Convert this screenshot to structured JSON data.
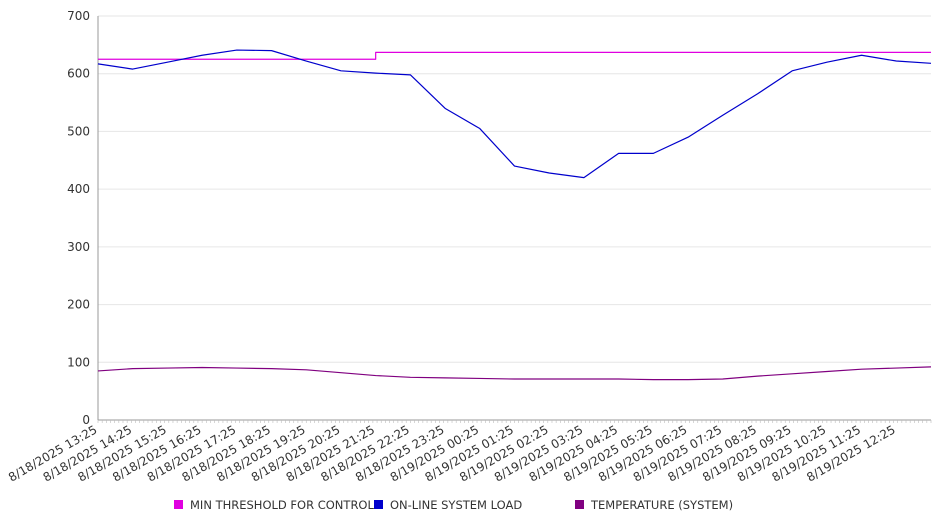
{
  "chart_data": {
    "type": "line",
    "title": "",
    "xlabel": "",
    "ylabel": "",
    "ylim": [
      0,
      700
    ],
    "yticks": [
      0,
      100,
      200,
      300,
      400,
      500,
      600,
      700
    ],
    "grid": true,
    "legend_position": "bottom",
    "x": [
      "8/18/2025 13:25",
      "8/18/2025 14:25",
      "8/18/2025 15:25",
      "8/18/2025 16:25",
      "8/18/2025 17:25",
      "8/18/2025 18:25",
      "8/18/2025 19:25",
      "8/18/2025 20:25",
      "8/18/2025 21:25",
      "8/18/2025 22:25",
      "8/18/2025 23:25",
      "8/19/2025 00:25",
      "8/19/2025 01:25",
      "8/19/2025 02:25",
      "8/19/2025 03:25",
      "8/19/2025 04:25",
      "8/19/2025 05:25",
      "8/19/2025 06:25",
      "8/19/2025 07:25",
      "8/19/2025 08:25",
      "8/19/2025 09:25",
      "8/19/2025 10:25",
      "8/19/2025 11:25",
      "8/19/2025 12:25",
      "8/19/2025 13:25"
    ],
    "x_tick_labels": [
      "8/18/2025 13:25",
      "8/18/2025 14:25",
      "8/18/2025 15:25",
      "8/18/2025 16:25",
      "8/18/2025 17:25",
      "8/18/2025 18:25",
      "8/18/2025 19:25",
      "8/18/2025 20:25",
      "8/18/2025 21:25",
      "8/18/2025 22:25",
      "8/18/2025 23:25",
      "8/19/2025 00:25",
      "8/19/2025 01:25",
      "8/19/2025 02:25",
      "8/19/2025 03:25",
      "8/19/2025 04:25",
      "8/19/2025 05:25",
      "8/19/2025 06:25",
      "8/19/2025 07:25",
      "8/19/2025 08:25",
      "8/19/2025 09:25",
      "8/19/2025 10:25",
      "8/19/2025 11:25",
      "8/19/2025 12:25"
    ],
    "series": [
      {
        "name": "MIN THRESHOLD FOR CONTROL",
        "color": "#e000e0",
        "values": [
          625,
          625,
          625,
          625,
          625,
          625,
          625,
          625,
          637,
          637,
          637,
          637,
          637,
          637,
          637,
          637,
          637,
          637,
          637,
          637,
          637,
          637,
          637,
          637,
          637
        ]
      },
      {
        "name": "ON-LINE SYSTEM LOAD",
        "color": "#0000cc",
        "values": [
          617,
          608,
          620,
          632,
          641,
          640,
          622,
          605,
          601,
          598,
          540,
          505,
          440,
          428,
          420,
          462,
          462,
          490,
          528,
          565,
          605,
          620,
          632,
          622,
          618
        ]
      },
      {
        "name": "TEMPERATURE (SYSTEM)",
        "color": "#800080",
        "values": [
          85,
          89,
          90,
          91,
          90,
          89,
          87,
          82,
          77,
          74,
          73,
          72,
          71,
          71,
          71,
          71,
          70,
          70,
          71,
          76,
          80,
          84,
          88,
          90,
          92
        ]
      }
    ]
  }
}
